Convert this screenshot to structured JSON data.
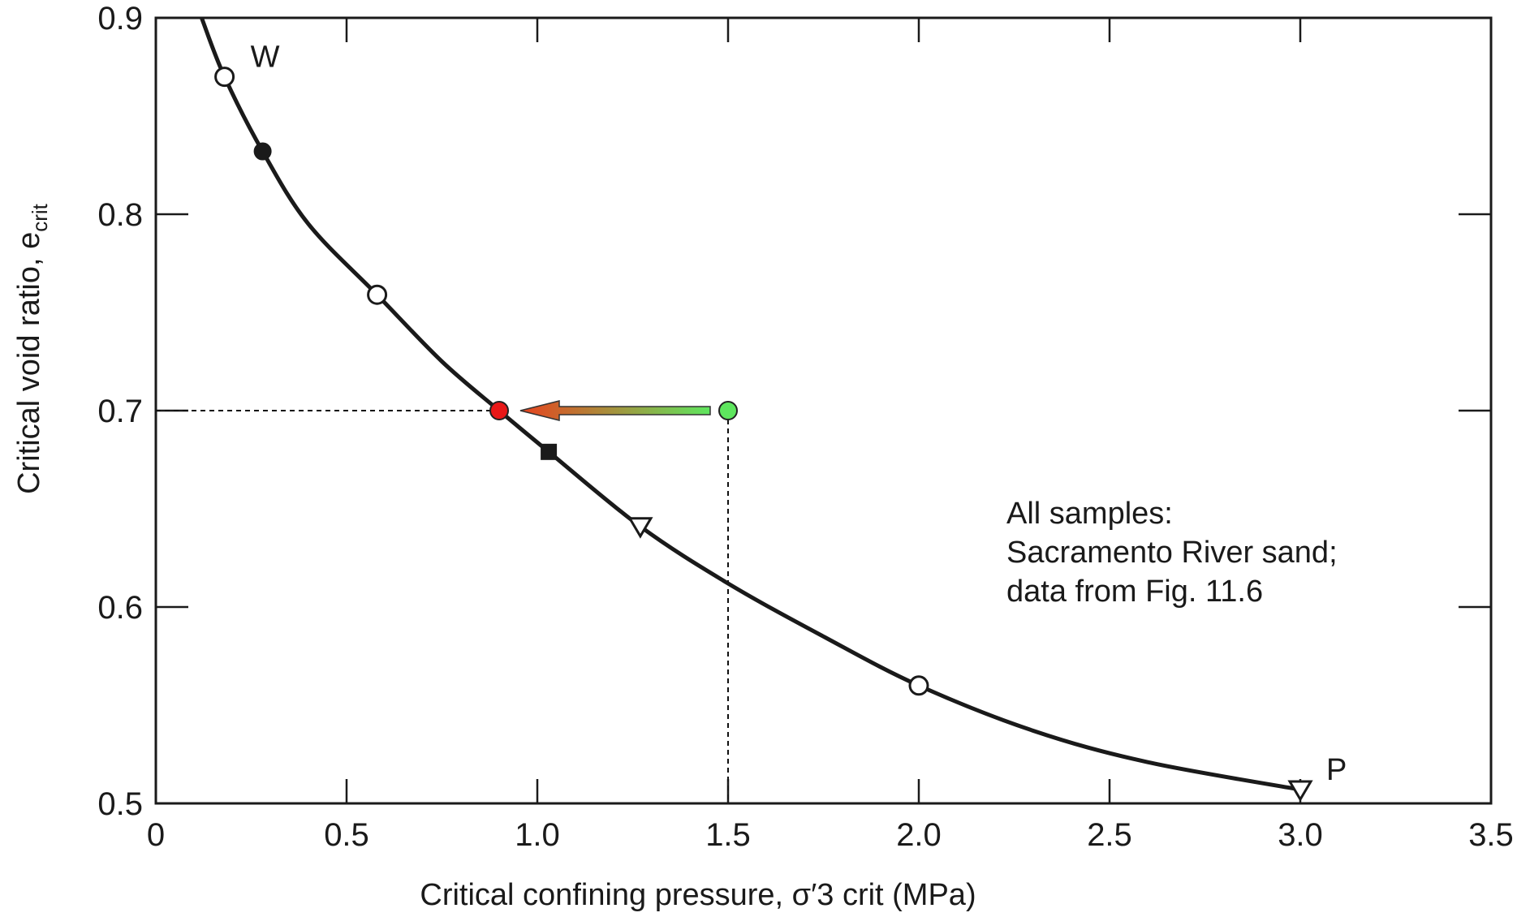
{
  "chart_data": {
    "type": "line",
    "xlabel": "Critical confining pressure, σ′3 crit  (MPa)",
    "ylabel": "Critical void ratio, e_crit",
    "xlim": [
      0,
      3.5
    ],
    "ylim": [
      0.5,
      0.9
    ],
    "x_ticks": [
      "0",
      "0.5",
      "1.0",
      "1.5",
      "2.0",
      "2.5",
      "3.0",
      "3.5"
    ],
    "y_ticks": [
      "0.5",
      "0.6",
      "0.7",
      "0.8",
      "0.9"
    ],
    "grid": false,
    "curve": {
      "x": [
        0.12,
        0.18,
        0.28,
        0.4,
        0.58,
        0.75,
        0.9,
        1.03,
        1.27,
        1.5,
        1.75,
        2.0,
        2.3,
        2.6,
        3.0
      ],
      "y": [
        0.9,
        0.87,
        0.832,
        0.795,
        0.759,
        0.725,
        0.7,
        0.679,
        0.641,
        0.612,
        0.585,
        0.56,
        0.537,
        0.521,
        0.507
      ]
    },
    "markers": [
      {
        "x": 0.18,
        "y": 0.87,
        "shape": "open-circle",
        "label": "W"
      },
      {
        "x": 0.28,
        "y": 0.832,
        "shape": "filled-circle"
      },
      {
        "x": 0.58,
        "y": 0.759,
        "shape": "open-circle"
      },
      {
        "x": 1.03,
        "y": 0.679,
        "shape": "filled-square"
      },
      {
        "x": 1.27,
        "y": 0.641,
        "shape": "open-triangle"
      },
      {
        "x": 2.0,
        "y": 0.56,
        "shape": "open-circle"
      },
      {
        "x": 3.0,
        "y": 0.507,
        "shape": "open-triangle",
        "label": "P"
      }
    ],
    "overlay": {
      "start_point": {
        "x": 1.5,
        "y": 0.7,
        "color": "#5ee65e"
      },
      "end_point": {
        "x": 0.9,
        "y": 0.7,
        "color": "#e81818"
      },
      "arrow_colors": [
        "#e8421e",
        "#5ee65e"
      ]
    },
    "annotation": {
      "lines": [
        "All samples:",
        "Sacramento River sand;",
        "data from Fig. 11.6"
      ]
    }
  }
}
